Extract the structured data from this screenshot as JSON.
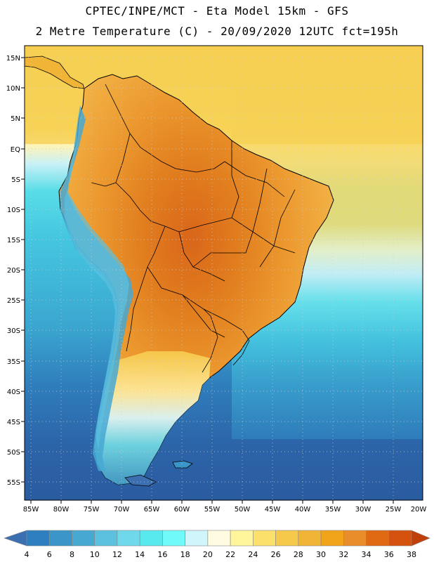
{
  "header": {
    "line1": "CPTEC/INPE/MCT -  Eta Model 15km - GFS",
    "line2": "2 Metre Temperature (C) - 20/09/2020 12UTC fct=195h"
  },
  "map": {
    "latitude_labels": [
      "15N",
      "10N",
      "5N",
      "EQ",
      "5S",
      "10S",
      "15S",
      "20S",
      "25S",
      "30S",
      "35S",
      "40S",
      "45S",
      "50S",
      "55S"
    ],
    "longitude_labels": [
      "85W",
      "80W",
      "75W",
      "70W",
      "65W",
      "60W",
      "55W",
      "50W",
      "45W",
      "40W",
      "35W",
      "30W",
      "25W",
      "20W"
    ],
    "colors": {
      "ocean_north": "#f5d35a",
      "land_hot": "#e88d2a",
      "coast_line": "#000000",
      "grid": "#c8c8c8"
    }
  },
  "legend": {
    "labels": [
      "4",
      "6",
      "8",
      "10",
      "12",
      "14",
      "16",
      "18",
      "20",
      "22",
      "24",
      "26",
      "28",
      "30",
      "32",
      "34",
      "36",
      "38"
    ],
    "colors": [
      "#3b6fb0",
      "#2d7fbf",
      "#3a96c8",
      "#47a8d2",
      "#5bc1df",
      "#6fd8ea",
      "#58e9ef",
      "#70fbfa",
      "#d0f6fb",
      "#fffbe0",
      "#fff59a",
      "#fbe06c",
      "#f6c94a",
      "#f0b536",
      "#f1a31a",
      "#e88d2a",
      "#e06a13",
      "#d4520d",
      "#c0400a"
    ]
  }
}
